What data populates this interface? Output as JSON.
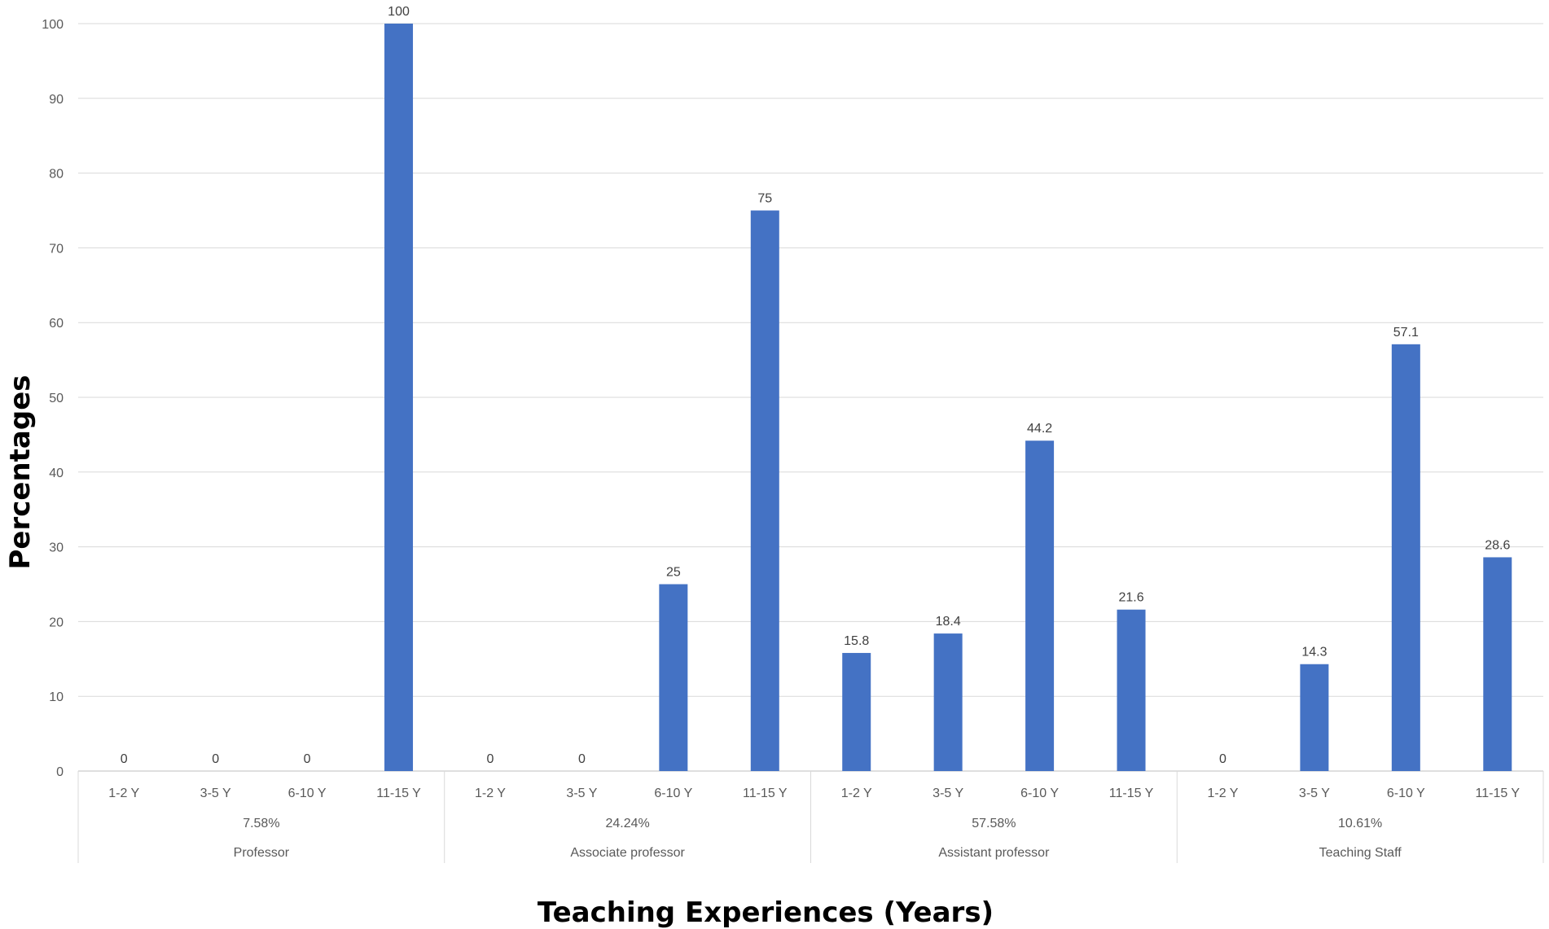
{
  "chart_data": {
    "type": "bar",
    "xlabel": "Teaching Experiences (Years)",
    "ylabel": "Percentages",
    "ylim": [
      0,
      100
    ],
    "yticks": [
      0,
      10,
      20,
      30,
      40,
      50,
      60,
      70,
      80,
      90,
      100
    ],
    "grid": true,
    "legend": "none",
    "bar_color": "#4472C4",
    "groups": [
      {
        "name": "Professor",
        "share": "7.58%",
        "categories": [
          "1-2 Y",
          "3-5 Y",
          "6-10 Y",
          "11-15 Y"
        ],
        "values": [
          0,
          0,
          0,
          100
        ]
      },
      {
        "name": "Associate professor",
        "share": "24.24%",
        "categories": [
          "1-2 Y",
          "3-5 Y",
          "6-10 Y",
          "11-15 Y"
        ],
        "values": [
          0,
          0,
          25,
          75
        ]
      },
      {
        "name": "Assistant professor",
        "share": "57.58%",
        "categories": [
          "1-2 Y",
          "3-5 Y",
          "6-10 Y",
          "11-15 Y"
        ],
        "values": [
          15.8,
          18.4,
          44.2,
          21.6
        ]
      },
      {
        "name": "Teaching Staff",
        "share": "10.61%",
        "categories": [
          "1-2 Y",
          "3-5 Y",
          "6-10 Y",
          "11-15 Y"
        ],
        "values": [
          0,
          14.3,
          57.1,
          28.6
        ]
      }
    ]
  }
}
